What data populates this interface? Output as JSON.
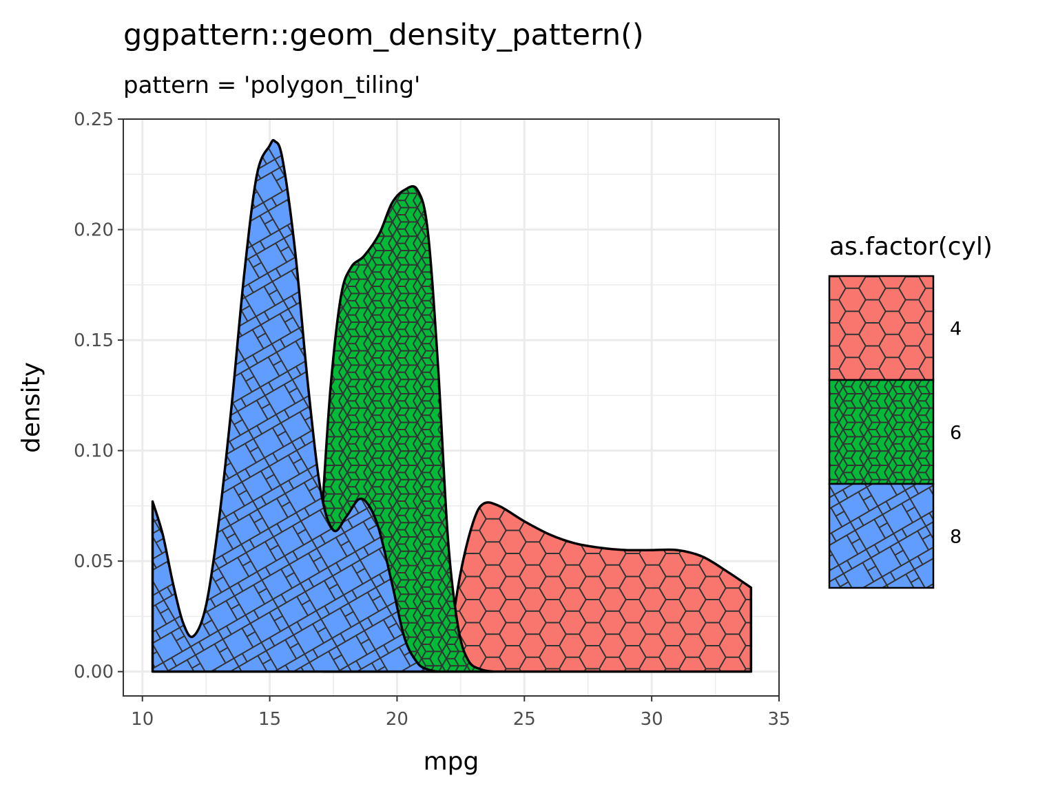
{
  "title": "ggpattern::geom_density_pattern()",
  "subtitle": "pattern = 'polygon_tiling'",
  "chart_data": {
    "type": "area",
    "title": "ggpattern::geom_density_pattern()",
    "subtitle": "pattern = 'polygon_tiling'",
    "xlabel": "mpg",
    "ylabel": "density",
    "xlim": [
      9.25,
      35.0
    ],
    "ylim": [
      -0.011,
      0.25
    ],
    "x_ticks": [
      10,
      15,
      20,
      25,
      30,
      35
    ],
    "y_ticks": [
      0.0,
      0.05,
      0.1,
      0.15,
      0.2,
      0.25
    ],
    "x_tick_labels": [
      "10",
      "15",
      "20",
      "25",
      "30",
      "35"
    ],
    "y_tick_labels": [
      "0.00",
      "0.05",
      "0.10",
      "0.15",
      "0.20",
      "0.25"
    ],
    "grid": true,
    "legend": {
      "title": "as.factor(cyl)",
      "position": "right",
      "entries": [
        "4",
        "6",
        "8"
      ]
    },
    "series": [
      {
        "name": "4",
        "color": "#F8766D",
        "pattern": "hexagon tiling",
        "x": [
          21.4,
          21.8,
          22.0,
          22.5,
          23.0,
          23.4,
          24.0,
          25.0,
          26.0,
          27.0,
          28.0,
          29.0,
          30.0,
          31.0,
          32.0,
          33.0,
          33.9
        ],
        "y": [
          0.0,
          0.002,
          0.01,
          0.045,
          0.068,
          0.076,
          0.075,
          0.068,
          0.062,
          0.058,
          0.056,
          0.055,
          0.055,
          0.055,
          0.052,
          0.045,
          0.038
        ]
      },
      {
        "name": "6",
        "color": "#00BA38",
        "pattern": "rhombille tiling",
        "x": [
          17.1,
          17.4,
          17.8,
          18.2,
          18.7,
          19.3,
          19.8,
          20.3,
          20.8,
          21.2,
          21.6,
          22.0,
          22.4,
          22.8,
          23.3,
          23.8
        ],
        "y": [
          0.08,
          0.13,
          0.17,
          0.183,
          0.188,
          0.198,
          0.212,
          0.218,
          0.218,
          0.2,
          0.14,
          0.06,
          0.02,
          0.005,
          0.001,
          0.0
        ]
      },
      {
        "name": "8",
        "color": "#619CFF",
        "pattern": "square tiling",
        "x": [
          10.4,
          10.8,
          11.2,
          11.6,
          12.0,
          12.5,
          13.0,
          13.5,
          14.0,
          14.5,
          15.0,
          15.2,
          15.5,
          16.0,
          16.5,
          17.0,
          17.5,
          18.0,
          18.5,
          18.9,
          19.3,
          19.8,
          20.3,
          20.8,
          21.2,
          21.6
        ],
        "y": [
          0.077,
          0.062,
          0.04,
          0.022,
          0.016,
          0.03,
          0.068,
          0.12,
          0.18,
          0.225,
          0.238,
          0.24,
          0.232,
          0.19,
          0.13,
          0.082,
          0.064,
          0.07,
          0.078,
          0.075,
          0.064,
          0.04,
          0.015,
          0.004,
          0.001,
          0.0
        ]
      }
    ]
  }
}
